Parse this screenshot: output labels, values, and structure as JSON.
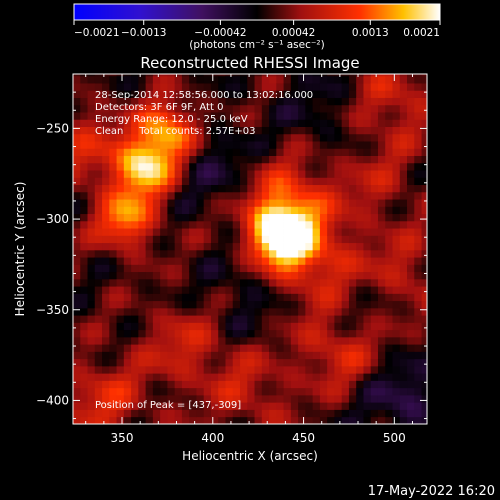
{
  "chart_data": {
    "type": "heatmap",
    "title": "Reconstructed RHESSI Image",
    "xlabel": "Heliocentric X (arcsec)",
    "ylabel": "Heliocentric Y (arcsec)",
    "xlim": [
      323,
      518
    ],
    "ylim": [
      -413,
      -220
    ],
    "x_ticks": [
      350,
      400,
      450,
      500
    ],
    "y_ticks": [
      -250,
      -300,
      -350,
      -400
    ],
    "colorbar": {
      "range": [
        -0.0021,
        0.0021
      ],
      "tick_values": [
        -0.0021,
        -0.0013,
        -0.00042,
        0.00042,
        0.0013,
        0.0021
      ],
      "tick_labels": [
        "-0.0021",
        "-0.0013",
        "-0.00042",
        "0.00042",
        "0.0013",
        "0.0021"
      ],
      "unit_label": "(photons cm⁻² s⁻¹ asec⁻²)"
    },
    "annotations": [
      "28-Sep-2014 12:58:56.000 to 13:02:16.000",
      "Detectors: 3F 6F 9F, Att 0",
      "Energy Range: 12.0 - 25.0 keV",
      "Clean     Total counts: 2.57E+03"
    ],
    "peak_text": "Position of Peak = [437,-309]",
    "peaks": [
      {
        "x": 437,
        "y": -309,
        "value": 0.0021
      },
      {
        "x": 362,
        "y": -272,
        "value": 0.0017
      },
      {
        "x": 375,
        "y": -252,
        "value": 0.0015
      },
      {
        "x": 352,
        "y": -300,
        "value": 0.0013
      },
      {
        "x": 442,
        "y": -292,
        "value": 0.0011
      },
      {
        "x": 458,
        "y": -325,
        "value": 0.0009
      },
      {
        "x": 470,
        "y": -370,
        "value": 0.0008
      },
      {
        "x": 340,
        "y": -400,
        "value": 0.0007
      },
      {
        "x": 385,
        "y": -370,
        "value": 0.0006
      },
      {
        "x": 330,
        "y": -260,
        "value": 0.0006
      },
      {
        "x": 505,
        "y": -330,
        "value": 0.0005
      },
      {
        "x": 500,
        "y": -235,
        "value": 0.0006
      },
      {
        "x": 420,
        "y": -395,
        "value": 0.0005
      },
      {
        "x": 490,
        "y": -280,
        "value": 0.0004
      }
    ],
    "troughs": [
      {
        "x": 505,
        "y": -400,
        "value": -0.0006
      },
      {
        "x": 475,
        "y": -350,
        "value": -0.0004
      },
      {
        "x": 400,
        "y": -270,
        "value": -0.0004
      },
      {
        "x": 415,
        "y": -345,
        "value": -0.0003
      },
      {
        "x": 460,
        "y": -240,
        "value": -0.0003
      }
    ],
    "grid": false
  },
  "timestamp": "17-May-2022 16:20"
}
